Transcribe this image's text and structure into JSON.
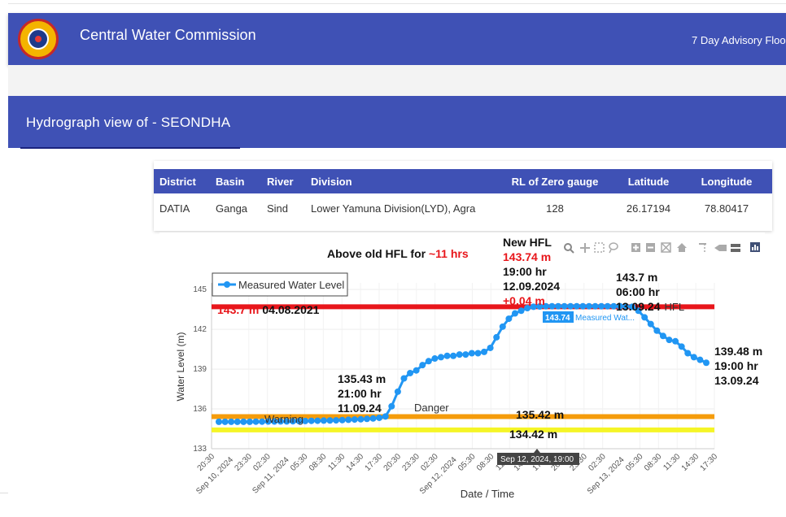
{
  "header": {
    "title": "Central Water Commission",
    "advisory_link": "7 Day Advisory Flood"
  },
  "page": {
    "title": "Hydrograph view of - SEONDHA"
  },
  "info_table": {
    "headers": [
      "District",
      "Basin",
      "River",
      "Division",
      "RL of Zero gauge",
      "Latitude",
      "Longitude"
    ],
    "row": [
      "DATIA",
      "Ganga",
      "Sind",
      "Lower Yamuna Division(LYD), Agra",
      "128",
      "26.17194",
      "78.80417"
    ]
  },
  "colors": {
    "accent": "#3f51b5",
    "series": "#2196f3",
    "hfl_line": "#e8161b",
    "danger_line": "#f59c0b",
    "warning_line": "#f5f526",
    "red_text": "#e8161b"
  },
  "toolbar_icons": [
    "zoom-icon",
    "pan-icon",
    "box-select-icon",
    "lasso-icon",
    "zoom-in-icon",
    "zoom-out-icon",
    "autoscale-icon",
    "reset-axes-icon",
    "spike-lines-icon",
    "hover-closest-icon",
    "hover-compare-icon",
    "plotly-logo-icon"
  ],
  "chart_data": {
    "type": "line",
    "xlabel": "Date / Time",
    "ylabel": "Water Level (m)",
    "ylim": [
      133,
      145.5
    ],
    "yticks": [
      133,
      136,
      139,
      142,
      145
    ],
    "x_tick_labels": [
      "20:30",
      "Sep 10, 2024",
      "23:30",
      "02:30",
      "Sep 11, 2024",
      "05:30",
      "08:30",
      "11:30",
      "14:30",
      "17:30",
      "20:30",
      "23:30",
      "02:30",
      "Sep 12, 2024",
      "05:30",
      "08:30",
      "11:30",
      "14:30",
      "17:30",
      "20:30",
      "23:30",
      "02:30",
      "Sep 13, 2024",
      "05:30",
      "08:30",
      "11:30",
      "14:30",
      "17:30"
    ],
    "grid": true,
    "legend": {
      "label": "Measured Water Level",
      "position": "top-left"
    },
    "series": [
      {
        "name": "Measured Water Level",
        "values": [
          135.03,
          135.03,
          135.03,
          135.03,
          135.03,
          135.03,
          135.04,
          135.04,
          135.05,
          135.05,
          135.06,
          135.06,
          135.07,
          135.08,
          135.09,
          135.1,
          135.11,
          135.12,
          135.13,
          135.14,
          135.16,
          135.18,
          135.2,
          135.22,
          135.25,
          135.28,
          135.33,
          135.43,
          136.2,
          137.3,
          138.3,
          138.7,
          138.9,
          139.3,
          139.6,
          139.8,
          139.9,
          140.0,
          140.0,
          140.1,
          140.1,
          140.2,
          140.2,
          140.3,
          140.6,
          141.4,
          142.2,
          142.8,
          143.2,
          143.4,
          143.6,
          143.7,
          143.72,
          143.74,
          143.74,
          143.74,
          143.74,
          143.74,
          143.74,
          143.74,
          143.74,
          143.74,
          143.74,
          143.74,
          143.74,
          143.74,
          143.72,
          143.7,
          143.4,
          142.9,
          142.4,
          141.9,
          141.5,
          141.2,
          141.1,
          140.7,
          140.2,
          139.9,
          139.7,
          139.48
        ]
      }
    ],
    "reference_lines": [
      {
        "name": "HFL",
        "value": 143.7,
        "color": "#e8161b"
      },
      {
        "name": "Danger",
        "value": 135.42,
        "color": "#f59c0b"
      },
      {
        "name": "Warning",
        "value": 134.42,
        "color": "#f5f526"
      }
    ],
    "annotations": {
      "above_hfl_prefix": "Above old HFL for ",
      "above_hfl_value": "~11 hrs",
      "old_hfl_value": "143.7 m",
      "old_hfl_date": "04.08.2021",
      "new_hfl_title": "New HFL",
      "new_hfl_value": "143.74 m",
      "new_hfl_time": "19:00 hr",
      "new_hfl_date": "12.09.2024",
      "new_hfl_diff": "+0.04 m",
      "crossing_value": "135.43 m",
      "crossing_time": "21:00 hr",
      "crossing_date": "11.09.24",
      "hfl_recede_value": "143.7 m",
      "hfl_recede_time": "06:00 hr",
      "hfl_recede_date": "13.09.24",
      "hfl_label": "HFL",
      "latest_value": "139.48 m",
      "latest_time": "19:00 hr",
      "latest_date": "13.09.24",
      "danger_label": "Danger",
      "danger_value": "135.42 m",
      "warning_label": "Warning",
      "warning_value": "134.42 m",
      "hover_value": "143.74",
      "hover_series": "Measured Wat...",
      "hover_x": "Sep 12, 2024, 19:00"
    }
  }
}
